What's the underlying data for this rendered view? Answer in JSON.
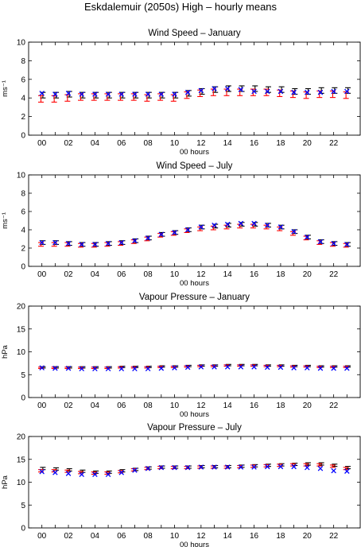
{
  "figure": {
    "title": "Eskdalemuir (2050s) High – hourly means",
    "colors": {
      "black": "#000000",
      "red": "#ff0000",
      "blue": "#0000ff"
    }
  },
  "chart_data": [
    {
      "type": "errorbar",
      "title": "Wind Speed – January",
      "xlabel": "00 hours",
      "ylabel": "ms⁻¹",
      "ylim": [
        0,
        10
      ],
      "yticks": [
        0,
        2,
        4,
        6,
        8,
        10
      ],
      "x": [
        0,
        1,
        2,
        3,
        4,
        5,
        6,
        7,
        8,
        9,
        10,
        11,
        12,
        13,
        14,
        15,
        16,
        17,
        18,
        19,
        20,
        21,
        22,
        23
      ],
      "xtick_labels": [
        "00",
        "02",
        "04",
        "06",
        "08",
        "10",
        "12",
        "14",
        "16",
        "18",
        "20",
        "22"
      ],
      "series": [
        {
          "color": "black",
          "marker": "errorbar",
          "mean": [
            4.3,
            4.3,
            4.4,
            4.3,
            4.3,
            4.3,
            4.3,
            4.3,
            4.3,
            4.3,
            4.3,
            4.5,
            4.7,
            4.9,
            5.0,
            5.0,
            5.0,
            4.9,
            4.9,
            4.7,
            4.7,
            4.8,
            4.8,
            4.8
          ],
          "err": [
            0.3,
            0.3,
            0.3,
            0.3,
            0.3,
            0.3,
            0.3,
            0.3,
            0.3,
            0.3,
            0.3,
            0.3,
            0.3,
            0.3,
            0.3,
            0.3,
            0.3,
            0.3,
            0.3,
            0.3,
            0.3,
            0.3,
            0.3,
            0.3
          ]
        },
        {
          "color": "red",
          "marker": "errorbar",
          "mean": [
            3.9,
            3.9,
            4.0,
            4.1,
            4.1,
            4.1,
            4.1,
            4.1,
            4.0,
            4.1,
            4.0,
            4.3,
            4.5,
            4.6,
            4.6,
            4.6,
            4.6,
            4.6,
            4.5,
            4.4,
            4.3,
            4.4,
            4.4,
            4.3
          ],
          "err": [
            0.35,
            0.35,
            0.35,
            0.35,
            0.35,
            0.35,
            0.35,
            0.35,
            0.35,
            0.35,
            0.35,
            0.35,
            0.35,
            0.35,
            0.35,
            0.35,
            0.35,
            0.35,
            0.35,
            0.35,
            0.35,
            0.35,
            0.35,
            0.35
          ]
        },
        {
          "color": "blue",
          "marker": "x",
          "mean": [
            4.5,
            4.4,
            4.5,
            4.4,
            4.4,
            4.4,
            4.4,
            4.4,
            4.4,
            4.4,
            4.4,
            4.6,
            4.8,
            5.0,
            5.0,
            4.9,
            4.7,
            4.7,
            4.7,
            4.6,
            4.6,
            4.6,
            4.7,
            4.7
          ]
        }
      ]
    },
    {
      "type": "errorbar",
      "title": "Wind Speed – July",
      "xlabel": "00 hours",
      "ylabel": "ms⁻¹",
      "ylim": [
        0,
        10
      ],
      "yticks": [
        0,
        2,
        4,
        6,
        8,
        10
      ],
      "x": [
        0,
        1,
        2,
        3,
        4,
        5,
        6,
        7,
        8,
        9,
        10,
        11,
        12,
        13,
        14,
        15,
        16,
        17,
        18,
        19,
        20,
        21,
        22,
        23
      ],
      "xtick_labels": [
        "00",
        "02",
        "04",
        "06",
        "08",
        "10",
        "12",
        "14",
        "16",
        "18",
        "20",
        "22"
      ],
      "series": [
        {
          "color": "black",
          "marker": "errorbar",
          "mean": [
            2.6,
            2.6,
            2.5,
            2.4,
            2.4,
            2.5,
            2.6,
            2.8,
            3.1,
            3.5,
            3.7,
            4.0,
            4.3,
            4.4,
            4.5,
            4.6,
            4.6,
            4.5,
            4.3,
            3.8,
            3.2,
            2.7,
            2.5,
            2.4
          ],
          "err": [
            0.2,
            0.2,
            0.2,
            0.2,
            0.2,
            0.2,
            0.2,
            0.2,
            0.2,
            0.2,
            0.2,
            0.2,
            0.2,
            0.2,
            0.2,
            0.2,
            0.2,
            0.2,
            0.2,
            0.2,
            0.2,
            0.2,
            0.2,
            0.2
          ]
        },
        {
          "color": "red",
          "marker": "errorbar",
          "mean": [
            2.4,
            2.4,
            2.4,
            2.3,
            2.3,
            2.4,
            2.5,
            2.7,
            3.0,
            3.4,
            3.6,
            3.9,
            4.1,
            4.2,
            4.3,
            4.4,
            4.4,
            4.3,
            4.1,
            3.6,
            3.1,
            2.6,
            2.4,
            2.3
          ],
          "err": [
            0.2,
            0.2,
            0.2,
            0.2,
            0.2,
            0.2,
            0.2,
            0.2,
            0.2,
            0.2,
            0.2,
            0.2,
            0.2,
            0.2,
            0.2,
            0.2,
            0.2,
            0.2,
            0.2,
            0.2,
            0.2,
            0.2,
            0.2,
            0.2
          ]
        },
        {
          "color": "blue",
          "marker": "x",
          "mean": [
            2.6,
            2.6,
            2.5,
            2.4,
            2.4,
            2.5,
            2.6,
            2.8,
            3.1,
            3.5,
            3.7,
            4.0,
            4.3,
            4.5,
            4.6,
            4.7,
            4.7,
            4.5,
            4.3,
            3.8,
            3.2,
            2.7,
            2.5,
            2.4
          ]
        }
      ]
    },
    {
      "type": "errorbar",
      "title": "Vapour Pressure – January",
      "xlabel": "00 hours",
      "ylabel": "hPa",
      "ylim": [
        0,
        20
      ],
      "yticks": [
        0,
        5,
        10,
        15,
        20
      ],
      "x": [
        0,
        1,
        2,
        3,
        4,
        5,
        6,
        7,
        8,
        9,
        10,
        11,
        12,
        13,
        14,
        15,
        16,
        17,
        18,
        19,
        20,
        21,
        22,
        23
      ],
      "xtick_labels": [
        "00",
        "02",
        "04",
        "06",
        "08",
        "10",
        "12",
        "14",
        "16",
        "18",
        "20",
        "22"
      ],
      "series": [
        {
          "color": "black",
          "marker": "errorbar",
          "mean": [
            6.6,
            6.6,
            6.6,
            6.6,
            6.6,
            6.6,
            6.7,
            6.7,
            6.7,
            6.8,
            6.8,
            6.9,
            7.0,
            7.0,
            7.1,
            7.1,
            7.1,
            7.0,
            7.0,
            6.9,
            6.9,
            6.8,
            6.8,
            6.8
          ],
          "err": [
            0.15,
            0.15,
            0.15,
            0.15,
            0.15,
            0.15,
            0.15,
            0.15,
            0.15,
            0.15,
            0.15,
            0.15,
            0.15,
            0.15,
            0.15,
            0.15,
            0.15,
            0.15,
            0.15,
            0.15,
            0.15,
            0.15,
            0.15,
            0.15
          ]
        },
        {
          "color": "red",
          "marker": "errorbar",
          "mean": [
            6.5,
            6.5,
            6.5,
            6.5,
            6.5,
            6.5,
            6.6,
            6.6,
            6.6,
            6.7,
            6.7,
            6.8,
            6.9,
            6.9,
            7.0,
            7.0,
            7.0,
            6.9,
            6.9,
            6.8,
            6.8,
            6.7,
            6.7,
            6.7
          ],
          "err": [
            0.15,
            0.15,
            0.15,
            0.15,
            0.15,
            0.15,
            0.15,
            0.15,
            0.15,
            0.15,
            0.15,
            0.15,
            0.15,
            0.15,
            0.15,
            0.15,
            0.15,
            0.15,
            0.15,
            0.15,
            0.15,
            0.15,
            0.15,
            0.15
          ]
        },
        {
          "color": "blue",
          "marker": "x",
          "mean": [
            6.5,
            6.4,
            6.4,
            6.3,
            6.3,
            6.3,
            6.3,
            6.3,
            6.3,
            6.4,
            6.5,
            6.6,
            6.7,
            6.7,
            6.7,
            6.7,
            6.7,
            6.6,
            6.6,
            6.5,
            6.5,
            6.4,
            6.4,
            6.4
          ]
        }
      ]
    },
    {
      "type": "errorbar",
      "title": "Vapour Pressure – July",
      "xlabel": "00 hours",
      "ylabel": "hPa",
      "ylim": [
        0,
        20
      ],
      "yticks": [
        0,
        5,
        10,
        15,
        20
      ],
      "x": [
        0,
        1,
        2,
        3,
        4,
        5,
        6,
        7,
        8,
        9,
        10,
        11,
        12,
        13,
        14,
        15,
        16,
        17,
        18,
        19,
        20,
        21,
        22,
        23
      ],
      "xtick_labels": [
        "00",
        "02",
        "04",
        "06",
        "08",
        "10",
        "12",
        "14",
        "16",
        "18",
        "20",
        "22"
      ],
      "series": [
        {
          "color": "black",
          "marker": "errorbar",
          "mean": [
            13.0,
            12.9,
            12.7,
            12.4,
            12.2,
            12.2,
            12.5,
            12.8,
            13.1,
            13.3,
            13.3,
            13.3,
            13.4,
            13.4,
            13.4,
            13.5,
            13.6,
            13.7,
            13.8,
            13.9,
            14.0,
            14.0,
            13.7,
            13.2
          ],
          "err": [
            0.25,
            0.25,
            0.25,
            0.25,
            0.25,
            0.25,
            0.25,
            0.25,
            0.25,
            0.25,
            0.25,
            0.25,
            0.25,
            0.25,
            0.25,
            0.25,
            0.25,
            0.25,
            0.25,
            0.25,
            0.25,
            0.25,
            0.25,
            0.25
          ]
        },
        {
          "color": "red",
          "marker": "errorbar",
          "mean": [
            12.5,
            12.5,
            12.4,
            12.1,
            12.0,
            12.0,
            12.3,
            12.7,
            13.0,
            13.2,
            13.2,
            13.2,
            13.3,
            13.3,
            13.3,
            13.4,
            13.5,
            13.6,
            13.7,
            13.8,
            13.8,
            13.8,
            13.5,
            13.0
          ],
          "err": [
            0.25,
            0.25,
            0.25,
            0.25,
            0.25,
            0.25,
            0.25,
            0.25,
            0.25,
            0.25,
            0.25,
            0.25,
            0.25,
            0.25,
            0.25,
            0.25,
            0.25,
            0.25,
            0.25,
            0.25,
            0.25,
            0.25,
            0.25,
            0.25
          ]
        },
        {
          "color": "blue",
          "marker": "x",
          "mean": [
            12.3,
            12.1,
            11.9,
            11.7,
            11.7,
            11.7,
            12.1,
            12.6,
            13.0,
            13.2,
            13.2,
            13.2,
            13.3,
            13.3,
            13.3,
            13.3,
            13.3,
            13.4,
            13.4,
            13.4,
            13.2,
            13.0,
            12.5,
            12.4
          ]
        }
      ]
    }
  ]
}
